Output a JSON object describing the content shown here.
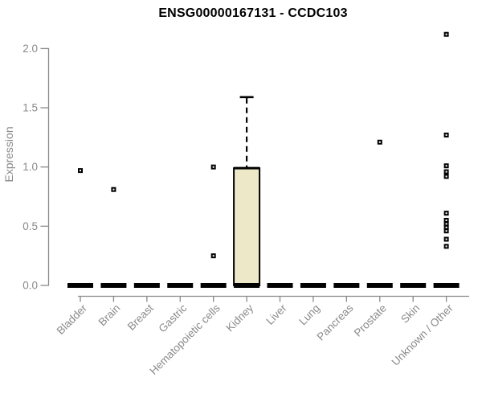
{
  "chart_data": {
    "type": "box",
    "title": "ENSG00000167131 - CCDC103",
    "ylabel": "Expression",
    "xlabel": "",
    "ylim": [
      0,
      2.15
    ],
    "yticks": [
      0.0,
      0.5,
      1.0,
      1.5,
      2.0
    ],
    "ytick_labels": [
      "0.0",
      "0.5",
      "1.0",
      "1.5",
      "2.0"
    ],
    "grid": "off",
    "legend": "none",
    "categories": [
      "Bladder",
      "Brain",
      "Breast",
      "Gastric",
      "Hematopoietic cells",
      "Kidney",
      "Liver",
      "Lung",
      "Pancreas",
      "Prostate",
      "Skin",
      "Unknown / Other"
    ],
    "boxes": [
      {
        "category": "Bladder",
        "whisker_low": 0,
        "q1": 0,
        "median": 0,
        "q3": 0,
        "whisker_high": 0,
        "outliers": [
          0.97
        ]
      },
      {
        "category": "Brain",
        "whisker_low": 0,
        "q1": 0,
        "median": 0,
        "q3": 0,
        "whisker_high": 0,
        "outliers": [
          0.81
        ]
      },
      {
        "category": "Breast",
        "whisker_low": 0,
        "q1": 0,
        "median": 0,
        "q3": 0,
        "whisker_high": 0,
        "outliers": []
      },
      {
        "category": "Gastric",
        "whisker_low": 0,
        "q1": 0,
        "median": 0,
        "q3": 0,
        "whisker_high": 0,
        "outliers": []
      },
      {
        "category": "Hematopoietic cells",
        "whisker_low": 0,
        "q1": 0,
        "median": 0,
        "q3": 0,
        "whisker_high": 0,
        "outliers": [
          1.0,
          0.25
        ]
      },
      {
        "category": "Kidney",
        "whisker_low": 0,
        "q1": 0,
        "median": 0,
        "q3": 0.99,
        "whisker_high": 1.59,
        "outliers": []
      },
      {
        "category": "Liver",
        "whisker_low": 0,
        "q1": 0,
        "median": 0,
        "q3": 0,
        "whisker_high": 0,
        "outliers": []
      },
      {
        "category": "Lung",
        "whisker_low": 0,
        "q1": 0,
        "median": 0,
        "q3": 0,
        "whisker_high": 0,
        "outliers": []
      },
      {
        "category": "Pancreas",
        "whisker_low": 0,
        "q1": 0,
        "median": 0,
        "q3": 0,
        "whisker_high": 0,
        "outliers": []
      },
      {
        "category": "Prostate",
        "whisker_low": 0,
        "q1": 0,
        "median": 0,
        "q3": 0,
        "whisker_high": 0,
        "outliers": [
          1.21
        ]
      },
      {
        "category": "Skin",
        "whisker_low": 0,
        "q1": 0,
        "median": 0,
        "q3": 0,
        "whisker_high": 0,
        "outliers": []
      },
      {
        "category": "Unknown / Other",
        "whisker_low": 0,
        "q1": 0,
        "median": 0,
        "q3": 0,
        "whisker_high": 0,
        "outliers": [
          2.12,
          1.27,
          1.01,
          0.96,
          0.92,
          0.61,
          0.55,
          0.52,
          0.49,
          0.46,
          0.39,
          0.33
        ]
      }
    ],
    "colors": {
      "box_fill": "#EDE8C8",
      "box_stroke": "#000000",
      "median": "#000000",
      "outlier": "#000000",
      "axis": "#898989",
      "tick_text": "#8a8a8a",
      "title_text": "#000000",
      "background": "#ffffff"
    }
  }
}
